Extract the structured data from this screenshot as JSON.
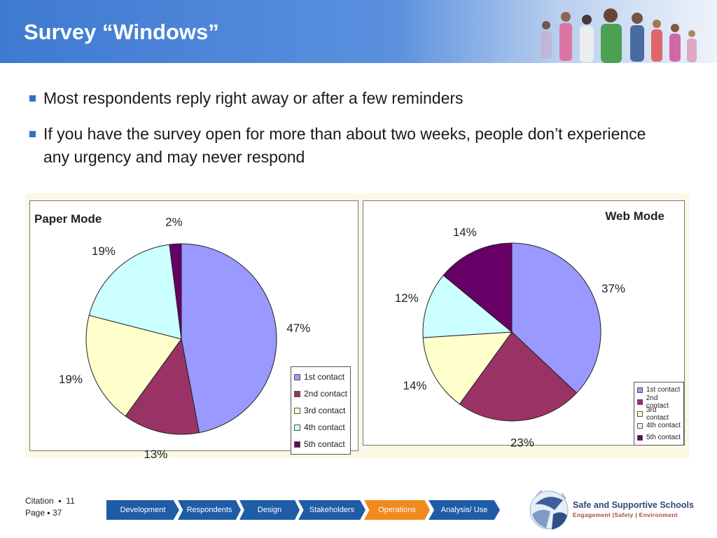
{
  "header": {
    "title": "Survey “Windows”"
  },
  "bullets": [
    "Most respondents reply right away or after a few reminders",
    "If you have the survey open for more than about two weeks, people don’t experience any urgency and may never respond"
  ],
  "chart_data": [
    {
      "type": "pie",
      "title": "Paper Mode",
      "categories": [
        "1st contact",
        "2nd contact",
        "3rd contact",
        "4th contact",
        "5th contact"
      ],
      "values": [
        47,
        13,
        19,
        19,
        2
      ],
      "labels": [
        "47%",
        "13%",
        "19%",
        "19%",
        "2%"
      ],
      "colors": [
        "#9999ff",
        "#993366",
        "#ffffcc",
        "#ccffff",
        "#660066"
      ],
      "legend": "bottom-right"
    },
    {
      "type": "pie",
      "title": "Web Mode",
      "categories": [
        "1st contact",
        "2nd contact",
        "3rd contact",
        "4th contact",
        "5th contact"
      ],
      "values": [
        37,
        23,
        14,
        12,
        14
      ],
      "labels": [
        "37%",
        "23%",
        "14%",
        "12%",
        "14%"
      ],
      "colors": [
        "#9999ff",
        "#993366",
        "#ffffcc",
        "#ccffff",
        "#660066"
      ],
      "legend": "bottom-right"
    }
  ],
  "footer": {
    "citation_label": "Citation",
    "citation_value": "11",
    "page_label": "Page",
    "page_value": "37"
  },
  "nav": {
    "steps": [
      "Development",
      "Respondents",
      "Design",
      "Stakeholders",
      "Operations",
      "Analysis/ Use"
    ],
    "active_index": 4,
    "color": "#1f5ca8",
    "active_color": "#f08a1c"
  },
  "logo": {
    "name": "Safe and Supportive  Schools",
    "tagline": "Engagement |Safety | Environment"
  }
}
